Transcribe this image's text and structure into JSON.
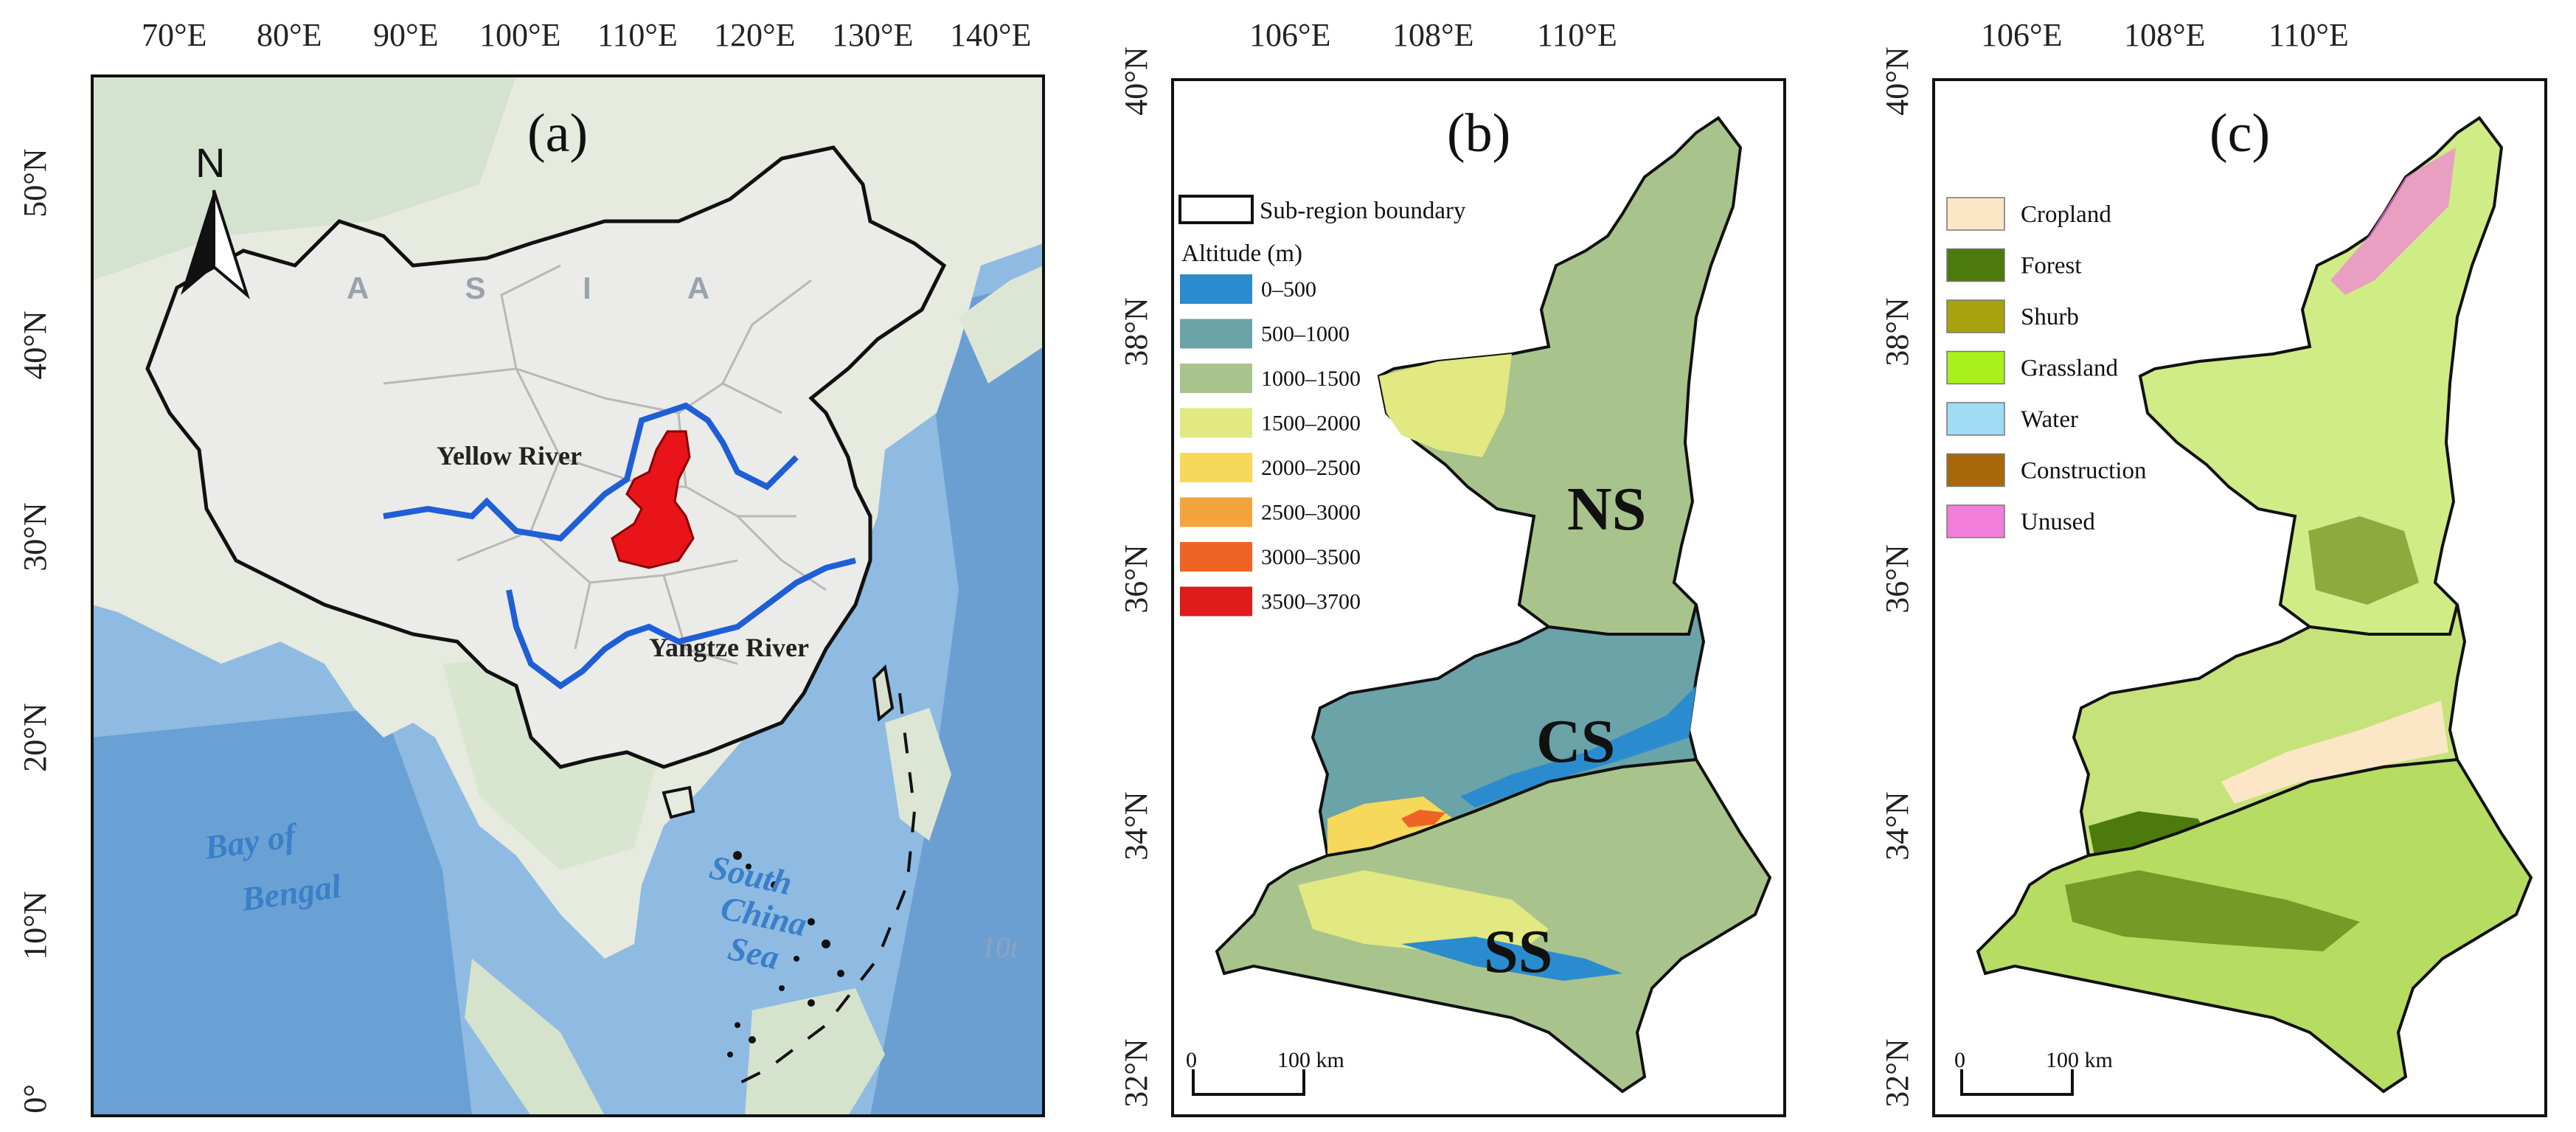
{
  "panel_a": {
    "label": "(a)",
    "lon_ticks": [
      "70°E",
      "80°E",
      "90°E",
      "100°E",
      "110°E",
      "120°E",
      "130°E",
      "140°E"
    ],
    "lat_ticks": [
      "50°N",
      "40°N",
      "30°N",
      "20°N",
      "10°N",
      "0°"
    ],
    "north": "N",
    "asia": "A S I A",
    "yellow_river": "Yellow River",
    "yangtze_river": "Yangtze River",
    "bay_of_bengal_1": "Bay of",
    "bay_of_bengal_2": "Bengal",
    "scs_1": "South",
    "scs_2": "China",
    "scs_3": "Sea",
    "edge_text": "10t",
    "colors": {
      "study_area": "#e8141a",
      "rivers": "#1f5fd6",
      "ocean": "#7fb2de",
      "land": "#e9ecef"
    }
  },
  "panel_b": {
    "label": "(b)",
    "lon_ticks": [
      "106°E",
      "108°E",
      "110°E"
    ],
    "lat_ticks": [
      "40°N",
      "38°N",
      "36°N",
      "34°N",
      "32°N"
    ],
    "boundary_label": "Sub-region boundary",
    "altitude_title": "Altitude (m)",
    "legend": [
      {
        "label": "0–500",
        "color": "#2a8ccf"
      },
      {
        "label": "500–1000",
        "color": "#6aa3a8"
      },
      {
        "label": "1000–1500",
        "color": "#a8c48c"
      },
      {
        "label": "1500–2000",
        "color": "#e2e882"
      },
      {
        "label": "2000–2500",
        "color": "#f6d85a"
      },
      {
        "label": "2500–3000",
        "color": "#f4a43c"
      },
      {
        "label": "3000–3500",
        "color": "#ee6425"
      },
      {
        "label": "3500–3700",
        "color": "#e01b1b"
      }
    ],
    "regions": {
      "north": "NS",
      "central": "CS",
      "south": "SS"
    },
    "scale": {
      "zero": "0",
      "dist": "100 km"
    }
  },
  "panel_c": {
    "label": "(c)",
    "lon_ticks": [
      "106°E",
      "108°E",
      "110°E"
    ],
    "lat_ticks": [
      "40°N",
      "38°N",
      "36°N",
      "34°N",
      "32°N"
    ],
    "legend": [
      {
        "label": "Cropland",
        "color": "#fbe7c6"
      },
      {
        "label": "Forest",
        "color": "#4c7a0c"
      },
      {
        "label": "Shurb",
        "color": "#a7a20d"
      },
      {
        "label": "Grassland",
        "color": "#a9f01c"
      },
      {
        "label": "Water",
        "color": "#a0dcf4"
      },
      {
        "label": "Construction",
        "color": "#a8680a"
      },
      {
        "label": "Unused",
        "color": "#f27fdc"
      }
    ],
    "scale": {
      "zero": "0",
      "dist": "100 km"
    }
  }
}
